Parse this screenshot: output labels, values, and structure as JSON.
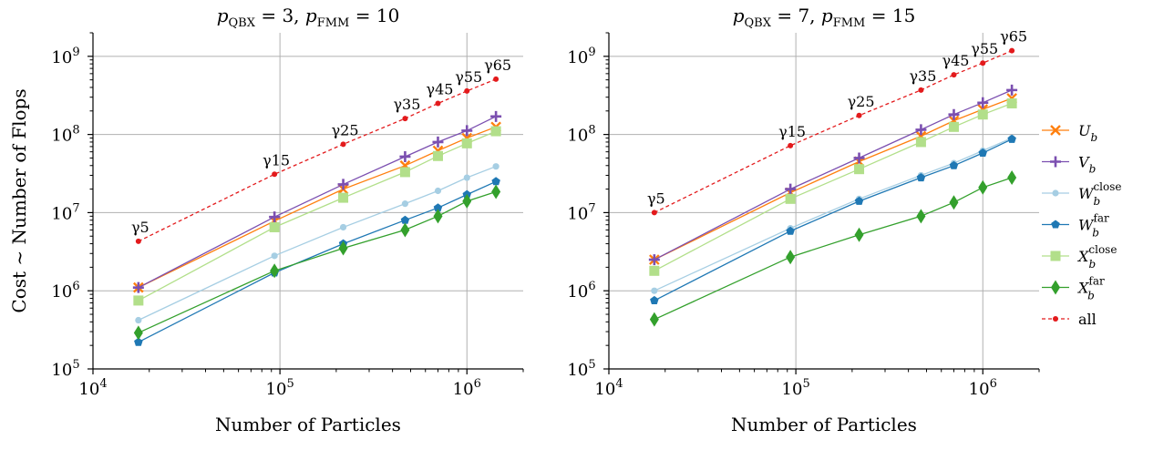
{
  "chart_data": [
    {
      "type": "line",
      "title": "p_QBX = 3, p_FMM = 10",
      "xlabel": "Number of Particles",
      "ylabel": "Cost ~ Number of Flops",
      "xscale": "log",
      "yscale": "log",
      "xlim": [
        10000,
        2000000
      ],
      "ylim": [
        100000,
        2000000000
      ],
      "xticks": [
        10000,
        100000,
        1000000
      ],
      "yticks": [
        100000,
        1000000,
        10000000,
        100000000,
        1000000000
      ],
      "grid": true,
      "x": [
        17500,
        93500,
        218000,
        467000,
        700000,
        1000000,
        1430000
      ],
      "point_labels": [
        "γ5",
        "γ15",
        "γ25",
        "γ35",
        "γ45",
        "γ55",
        "γ65"
      ],
      "series": [
        {
          "name": "U_b",
          "color": "#ff7f0e",
          "marker": "x",
          "values": [
            1100000,
            7800000,
            20000000,
            40000000,
            62000000,
            90000000,
            125000000
          ]
        },
        {
          "name": "V_b",
          "color": "#7b4fb0",
          "marker": "+",
          "values": [
            1100000,
            8800000,
            23000000,
            52000000,
            80000000,
            112000000,
            170000000
          ]
        },
        {
          "name": "W_b^close",
          "color": "#a6cee3",
          "marker": "o",
          "values": [
            420000,
            2800000,
            6500000,
            13000000,
            19000000,
            28000000,
            39000000
          ]
        },
        {
          "name": "W_b^far",
          "color": "#1f78b4",
          "marker": "p",
          "values": [
            220000,
            1700000,
            4000000,
            8000000,
            11500000,
            17000000,
            25000000
          ]
        },
        {
          "name": "X_b^close",
          "color": "#b2df8a",
          "marker": "s",
          "values": [
            750000,
            6500000,
            15500000,
            33000000,
            53000000,
            77000000,
            110000000
          ]
        },
        {
          "name": "X_b^far",
          "color": "#33a02c",
          "marker": "d",
          "values": [
            290000,
            1800000,
            3500000,
            6000000,
            9000000,
            14000000,
            18500000
          ]
        },
        {
          "name": "all",
          "color": "#e31a1c",
          "marker": ".",
          "dashed": true,
          "values": [
            4300000,
            31000000,
            75000000,
            160000000,
            250000000,
            360000000,
            510000000
          ]
        }
      ]
    },
    {
      "type": "line",
      "title": "p_QBX = 7, p_FMM = 15",
      "xlabel": "Number of Particles",
      "xscale": "log",
      "yscale": "log",
      "xlim": [
        10000,
        2000000
      ],
      "ylim": [
        100000,
        2000000000
      ],
      "xticks": [
        10000,
        100000,
        1000000
      ],
      "yticks": [
        100000,
        1000000,
        10000000,
        100000000,
        1000000000
      ],
      "grid": true,
      "x": [
        17500,
        93500,
        218000,
        467000,
        700000,
        1000000,
        1430000
      ],
      "point_labels": [
        "γ5",
        "γ15",
        "γ25",
        "γ35",
        "γ45",
        "γ55",
        "γ65"
      ],
      "series": [
        {
          "name": "U_b",
          "color": "#ff7f0e",
          "marker": "x",
          "values": [
            2500000,
            18000000,
            45000000,
            95000000,
            150000000,
            210000000,
            290000000
          ]
        },
        {
          "name": "V_b",
          "color": "#7b4fb0",
          "marker": "+",
          "values": [
            2500000,
            20000000,
            50000000,
            115000000,
            180000000,
            255000000,
            370000000
          ]
        },
        {
          "name": "W_b^close",
          "color": "#a6cee3",
          "marker": "o",
          "values": [
            1000000,
            6300000,
            15000000,
            30000000,
            43000000,
            62000000,
            90000000
          ]
        },
        {
          "name": "W_b^far",
          "color": "#1f78b4",
          "marker": "p",
          "values": [
            750000,
            5800000,
            14000000,
            28000000,
            40000000,
            58000000,
            87000000
          ]
        },
        {
          "name": "X_b^close",
          "color": "#b2df8a",
          "marker": "s",
          "values": [
            1800000,
            15000000,
            36000000,
            80000000,
            125000000,
            180000000,
            250000000
          ]
        },
        {
          "name": "X_b^far",
          "color": "#33a02c",
          "marker": "d",
          "values": [
            430000,
            2700000,
            5200000,
            9000000,
            13500000,
            21000000,
            28000000
          ]
        },
        {
          "name": "all",
          "color": "#e31a1c",
          "marker": ".",
          "dashed": true,
          "values": [
            10000000,
            72000000,
            175000000,
            370000000,
            580000000,
            820000000,
            1180000000
          ]
        }
      ]
    }
  ],
  "legend": {
    "placement": "right",
    "entries": [
      {
        "base": "U",
        "sub": "b",
        "sup": "",
        "italic": true
      },
      {
        "base": "V",
        "sub": "b",
        "sup": "",
        "italic": true
      },
      {
        "base": "W",
        "sub": "b",
        "sup": "close",
        "italic": true
      },
      {
        "base": "W",
        "sub": "b",
        "sup": "far",
        "italic": true
      },
      {
        "base": "X",
        "sub": "b",
        "sup": "close",
        "italic": true
      },
      {
        "base": "X",
        "sub": "b",
        "sup": "far",
        "italic": true
      },
      {
        "base": "all",
        "sub": "",
        "sup": "",
        "italic": false
      }
    ]
  },
  "tick_labels": {
    "x": [
      {
        "base": "10",
        "exp": "4"
      },
      {
        "base": "10",
        "exp": "5"
      },
      {
        "base": "10",
        "exp": "6"
      }
    ],
    "y": [
      {
        "base": "10",
        "exp": "5"
      },
      {
        "base": "10",
        "exp": "6"
      },
      {
        "base": "10",
        "exp": "7"
      },
      {
        "base": "10",
        "exp": "8"
      },
      {
        "base": "10",
        "exp": "9"
      }
    ]
  },
  "titles": [
    {
      "p1": "p",
      "s1": "QBX",
      "e1": " = 3, ",
      "p2": "p",
      "s2": "FMM",
      "e2": " = 10"
    },
    {
      "p1": "p",
      "s1": "QBX",
      "e1": " = 7, ",
      "p2": "p",
      "s2": "FMM",
      "e2": " = 15"
    }
  ]
}
